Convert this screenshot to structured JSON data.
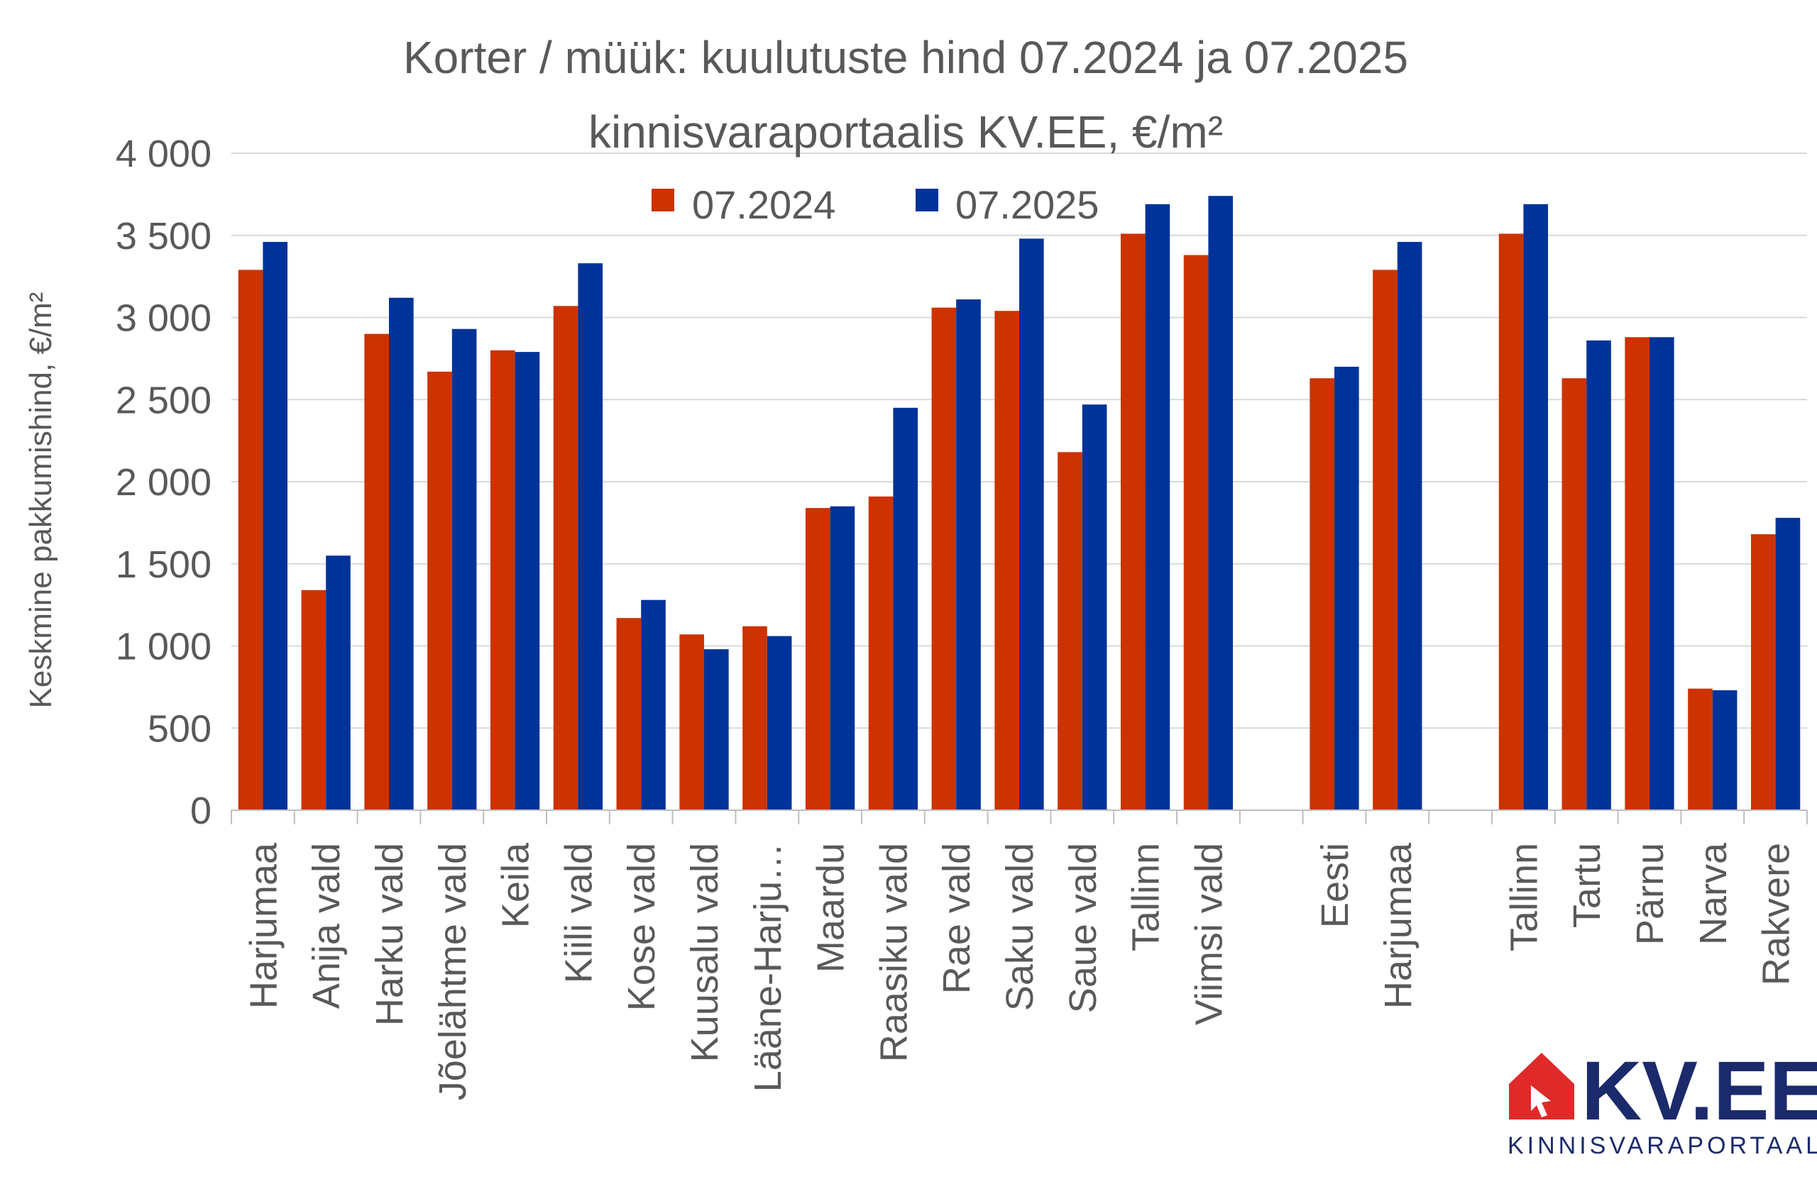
{
  "chart_data": {
    "type": "bar",
    "title_line1": "Korter / müük: kuulutuste hind 07.2024 ja 07.2025",
    "title_line2": "kinnisvaraportaalis KV.EE, €/m²",
    "ylabel": "Keskmine pakkumishind, €/m²",
    "xlabel": "",
    "ylim": [
      0,
      4000
    ],
    "yticks": [
      0,
      500,
      1000,
      1500,
      2000,
      2500,
      3000,
      3500,
      4000
    ],
    "ytick_labels": [
      "0",
      "500",
      "1 000",
      "1 500",
      "2 000",
      "2 500",
      "3 000",
      "3 500",
      "4 000"
    ],
    "grid": true,
    "legend_position": "top",
    "categories": [
      "Harjumaa",
      "Anija vald",
      "Harku vald",
      "Jõelähtme vald",
      "Keila",
      "Kiili vald",
      "Kose vald",
      "Kuusalu vald",
      "Lääne-Harju…",
      "Maardu",
      "Raasiku vald",
      "Rae vald",
      "Saku vald",
      "Saue vald",
      "Tallinn",
      "Viimsi vald",
      "",
      "Eesti",
      "Harjumaa",
      "",
      "Tallinn",
      "Tartu",
      "Pärnu",
      "Narva",
      "Rakvere"
    ],
    "series": [
      {
        "name": "07.2024",
        "color": "#cc3300",
        "values": [
          3290,
          1340,
          2900,
          2670,
          2800,
          3070,
          1170,
          1070,
          1120,
          1840,
          1910,
          3060,
          3040,
          2180,
          3510,
          3380,
          null,
          2630,
          3290,
          null,
          3510,
          2630,
          2880,
          740,
          1680
        ]
      },
      {
        "name": "07.2025",
        "color": "#003399",
        "values": [
          3460,
          1550,
          3120,
          2930,
          2790,
          3330,
          1280,
          980,
          1060,
          1850,
          2450,
          3110,
          3480,
          2470,
          3690,
          3740,
          null,
          2700,
          3460,
          null,
          3690,
          2860,
          2880,
          730,
          1780
        ]
      }
    ]
  },
  "logo": {
    "text": "KV.EE",
    "subtext": "KINNISVARAPORTAAL",
    "house_color": "#e02a2a",
    "text_color": "#1b2a6b"
  }
}
